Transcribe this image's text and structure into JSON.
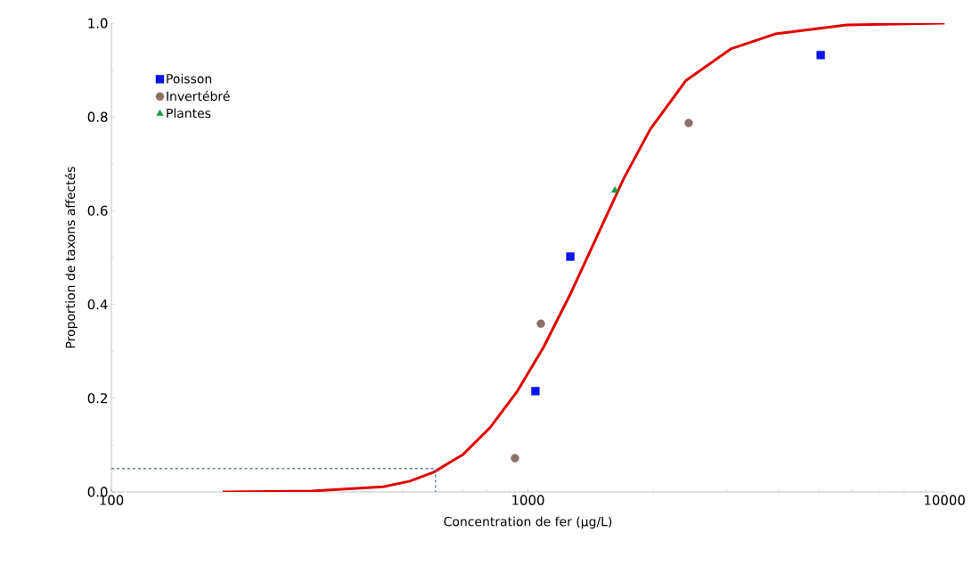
{
  "chart_data": {
    "type": "scatter",
    "xlabel": "Concentration de fer (µg/L)",
    "ylabel": "Proportion  de taxons affectés",
    "log": "x",
    "xlim": [
      100,
      10000
    ],
    "ylim": [
      0,
      1
    ],
    "xticks": [
      100,
      1000,
      10000
    ],
    "yticks": [
      {
        "value": 0,
        "label": "0.0"
      },
      {
        "value": 0.2,
        "label": "0.2"
      },
      {
        "value": 0.4,
        "label": "0.4"
      },
      {
        "value": 0.6,
        "label": "0.6"
      },
      {
        "value": 0.8,
        "label": "0.8"
      },
      {
        "value": 1,
        "label": "1.0"
      }
    ],
    "grid": false,
    "legend": "top left",
    "series": [
      {
        "type": "line",
        "color": "#e00000",
        "marker": "none",
        "line_style": "solid",
        "x": [
          185,
          303,
          449,
          521,
          594,
          699,
          811,
          940,
          1089,
          1264,
          1466,
          1699,
          1968,
          2397,
          3068,
          3926,
          5823,
          10000
        ],
        "values": [
          0,
          0.002,
          0.011,
          0.023,
          0.042,
          0.08,
          0.137,
          0.213,
          0.308,
          0.422,
          0.546,
          0.669,
          0.774,
          0.878,
          0.945,
          0.977,
          0.996,
          1.0
        ]
      },
      {
        "type": "line",
        "color": "#5a7fa0",
        "marker": "none",
        "line_style": "dashed",
        "x": [
          100,
          600,
          600
        ],
        "values": [
          0.05,
          0.05,
          0
        ]
      },
      {
        "name": "Poisson",
        "color": "#0a14e6",
        "marker": "square",
        "x": [
          1042,
          1264,
          5045
        ],
        "values": [
          0.215,
          0.502,
          0.932
        ]
      },
      {
        "name": "Invertébré",
        "color": "#8c6e6a",
        "marker": "circle",
        "x": [
          931,
          1074,
          2432
        ],
        "values": [
          0.072,
          0.359,
          0.787
        ]
      },
      {
        "name": "Plantes",
        "color": "#1a9a48",
        "marker": "triangle",
        "x": [
          1617
        ],
        "values": [
          0.643
        ]
      }
    ]
  }
}
